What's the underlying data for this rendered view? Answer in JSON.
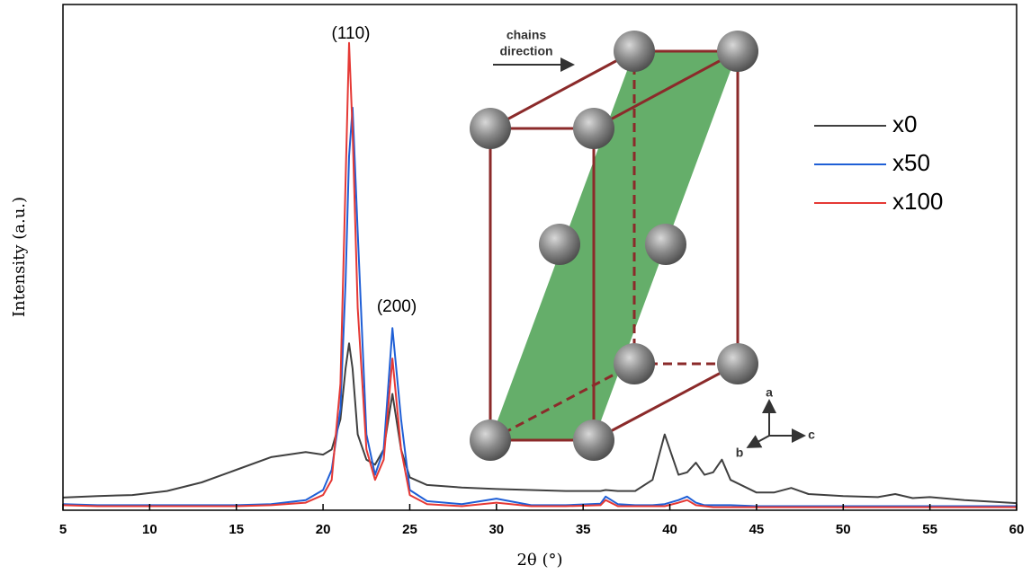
{
  "chart_data": {
    "type": "line",
    "xlabel": "2θ (°)",
    "ylabel": "Intensity (a.u.)",
    "x": [
      5,
      7,
      9,
      11,
      13,
      15,
      17,
      19,
      20,
      20.5,
      21,
      21.3,
      21.5,
      21.7,
      22,
      22.5,
      23,
      23.5,
      24,
      24.5,
      25,
      26,
      28,
      30,
      32,
      34,
      36,
      36.3,
      37,
      38,
      39,
      39.7,
      40.5,
      41,
      41.5,
      42,
      42.5,
      43,
      43.5,
      45,
      46,
      47,
      48,
      50,
      52,
      53,
      54,
      55,
      57,
      60
    ],
    "series": [
      {
        "name": "x0",
        "color": "#404040",
        "values": [
          2.5,
          2.8,
          3.0,
          3.8,
          5.5,
          8,
          10.5,
          11.5,
          11,
          12,
          18,
          28,
          33,
          28,
          15,
          10,
          9,
          12,
          23,
          12,
          6.5,
          5,
          4.5,
          4.2,
          4,
          3.8,
          3.8,
          4,
          3.8,
          3.8,
          6,
          15,
          7,
          7.5,
          9.4,
          7,
          7.5,
          10,
          6,
          3.5,
          3.5,
          4.4,
          3.2,
          2.8,
          2.6,
          3.2,
          2.4,
          2.6,
          2,
          1.4
        ]
      },
      {
        "name": "x50",
        "color": "#1f5fd6",
        "values": [
          1.2,
          1,
          1,
          1,
          1,
          1,
          1.2,
          2,
          4,
          8,
          20,
          45,
          70,
          79.6,
          55,
          15,
          7,
          12,
          36,
          18,
          4,
          1.8,
          1.2,
          2.3,
          1,
          1,
          1.3,
          2.7,
          1.2,
          1,
          1,
          1.2,
          2,
          2.7,
          1.5,
          1,
          1,
          1,
          1,
          0.8,
          0.8,
          0.8,
          0.8,
          0.8,
          0.8,
          0.8,
          0.8,
          0.8,
          0.8,
          0.8
        ]
      },
      {
        "name": "x100",
        "color": "#e53935",
        "values": [
          1,
          0.8,
          0.8,
          0.8,
          0.8,
          0.8,
          1,
          1.5,
          3,
          6,
          25,
          65,
          92.4,
          75,
          40,
          12,
          6,
          10,
          30,
          12,
          3,
          1.2,
          0.8,
          1.5,
          0.8,
          0.8,
          1,
          2,
          0.8,
          0.8,
          0.8,
          0.8,
          1.5,
          2,
          1,
          0.8,
          0.6,
          0.6,
          0.6,
          0.6,
          0.6,
          0.6,
          0.6,
          0.6,
          0.6,
          0.6,
          0.6,
          0.6,
          0.6,
          0.6
        ]
      }
    ],
    "xlim": [
      5,
      60
    ],
    "xticks": [
      5,
      10,
      15,
      20,
      25,
      30,
      35,
      40,
      45,
      50,
      55,
      60
    ],
    "ylim": [
      0,
      100
    ],
    "legend": "upper right",
    "annotations": [
      "(110)",
      "(200)"
    ],
    "inset_labels": [
      "chains",
      "direction"
    ],
    "inset_axes": [
      "a",
      "b",
      "c"
    ]
  }
}
